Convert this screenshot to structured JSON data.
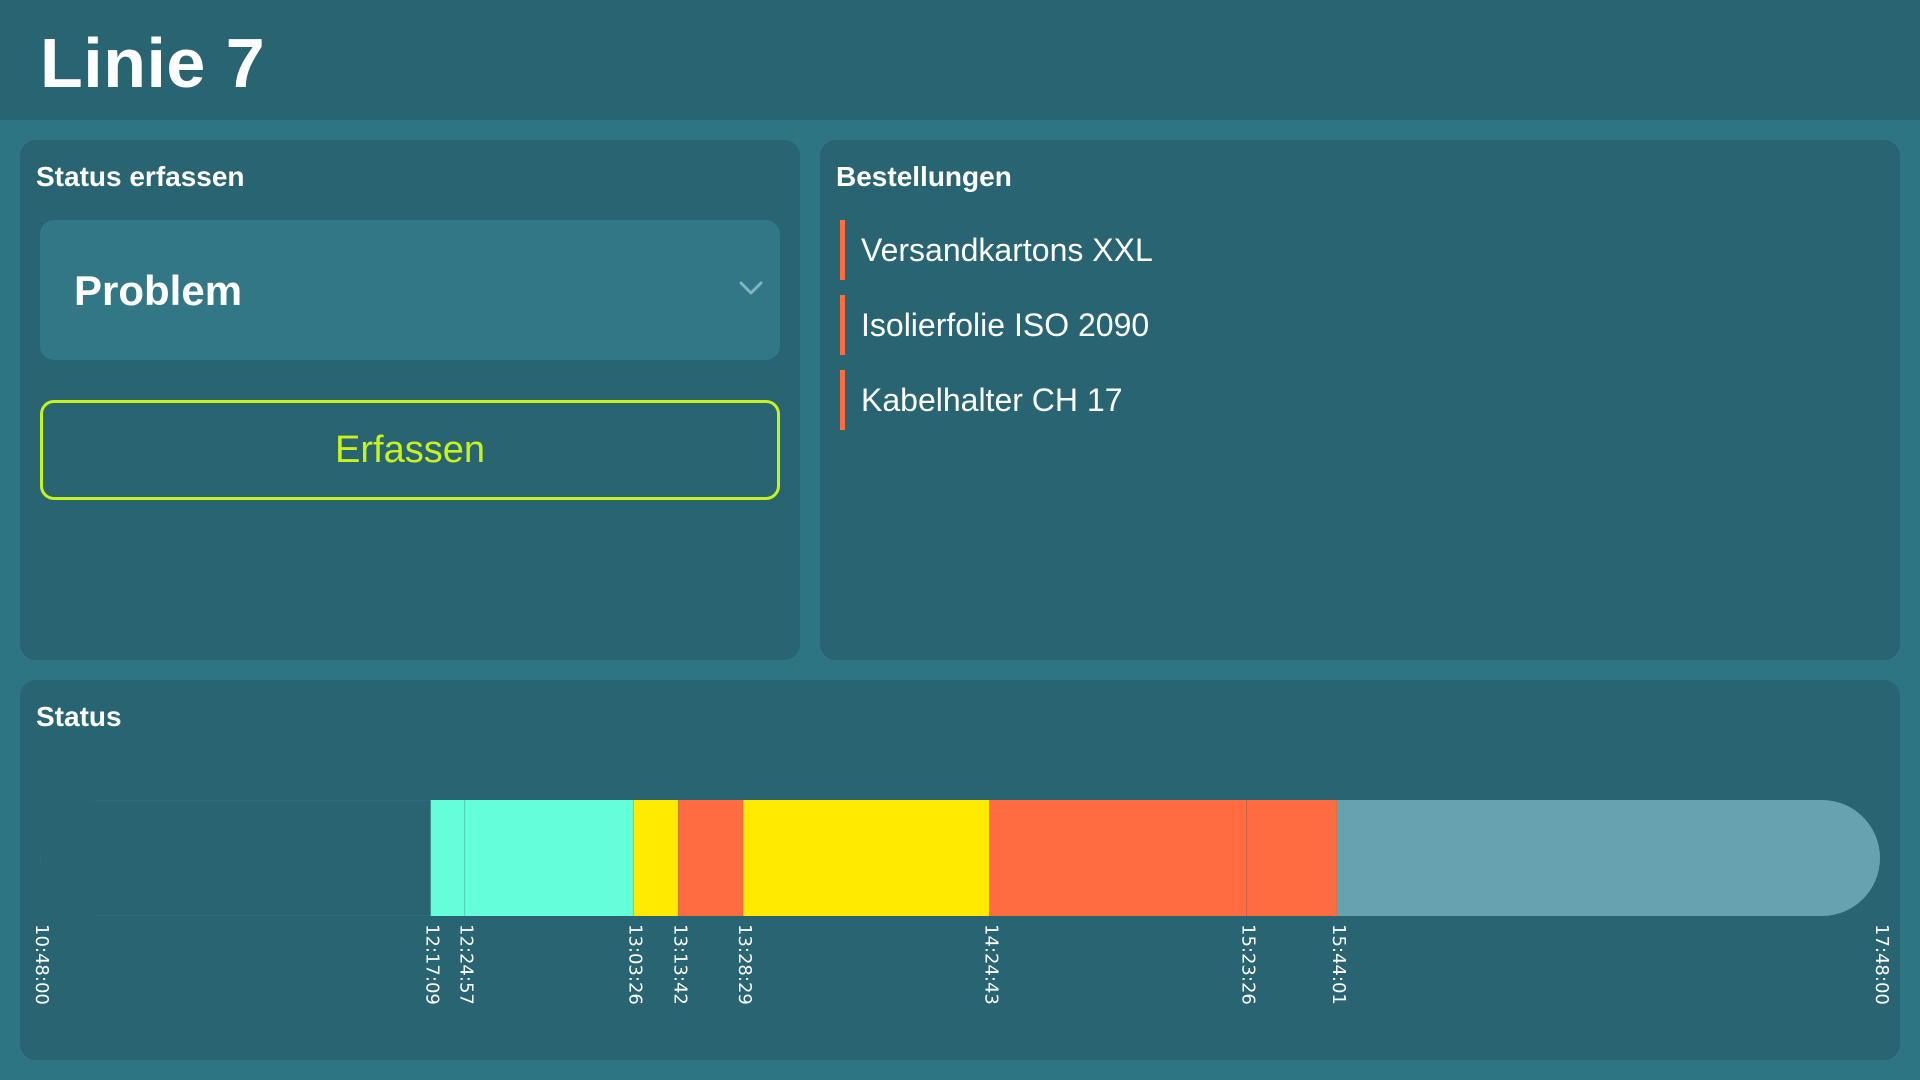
{
  "header": {
    "title": "Linie 7"
  },
  "status_entry": {
    "title": "Status erfassen",
    "selected_status": "Problem",
    "button_label": "Erfassen"
  },
  "orders": {
    "title": "Bestellungen",
    "items": [
      "Versandkartons XXL",
      "Isolierfolie ISO 2090",
      "Kabelhalter CH 17"
    ]
  },
  "timeline": {
    "title": "Status",
    "start": "10:48:00",
    "end": "17:48:00",
    "ticks": [
      "10:48:00",
      "12:17:09",
      "12:24:57",
      "13:03:26",
      "13:13:42",
      "13:28:29",
      "14:24:43",
      "15:23:26",
      "15:44:01",
      "17:48:00"
    ],
    "segments": [
      {
        "from": "12:17:09",
        "to": "12:24:57",
        "color": "#64ffda"
      },
      {
        "from": "12:24:57",
        "to": "13:03:26",
        "color": "#64ffda"
      },
      {
        "from": "13:03:26",
        "to": "13:13:42",
        "color": "#ffea00"
      },
      {
        "from": "13:13:42",
        "to": "13:28:29",
        "color": "#fe6c42"
      },
      {
        "from": "13:28:29",
        "to": "14:24:43",
        "color": "#ffea00"
      },
      {
        "from": "14:24:43",
        "to": "15:23:26",
        "color": "#fe6c42"
      },
      {
        "from": "15:23:26",
        "to": "15:44:01",
        "color": "#fe6c42"
      }
    ],
    "future_color": "#66a3b0",
    "empty_color": "#286472"
  },
  "colors": {
    "background": "#2e7583",
    "panel": "#286472",
    "accent_button": "#c8f21c",
    "order_marker": "#fe6c42"
  },
  "icons": {
    "dropdown": "chevron-down-icon"
  }
}
